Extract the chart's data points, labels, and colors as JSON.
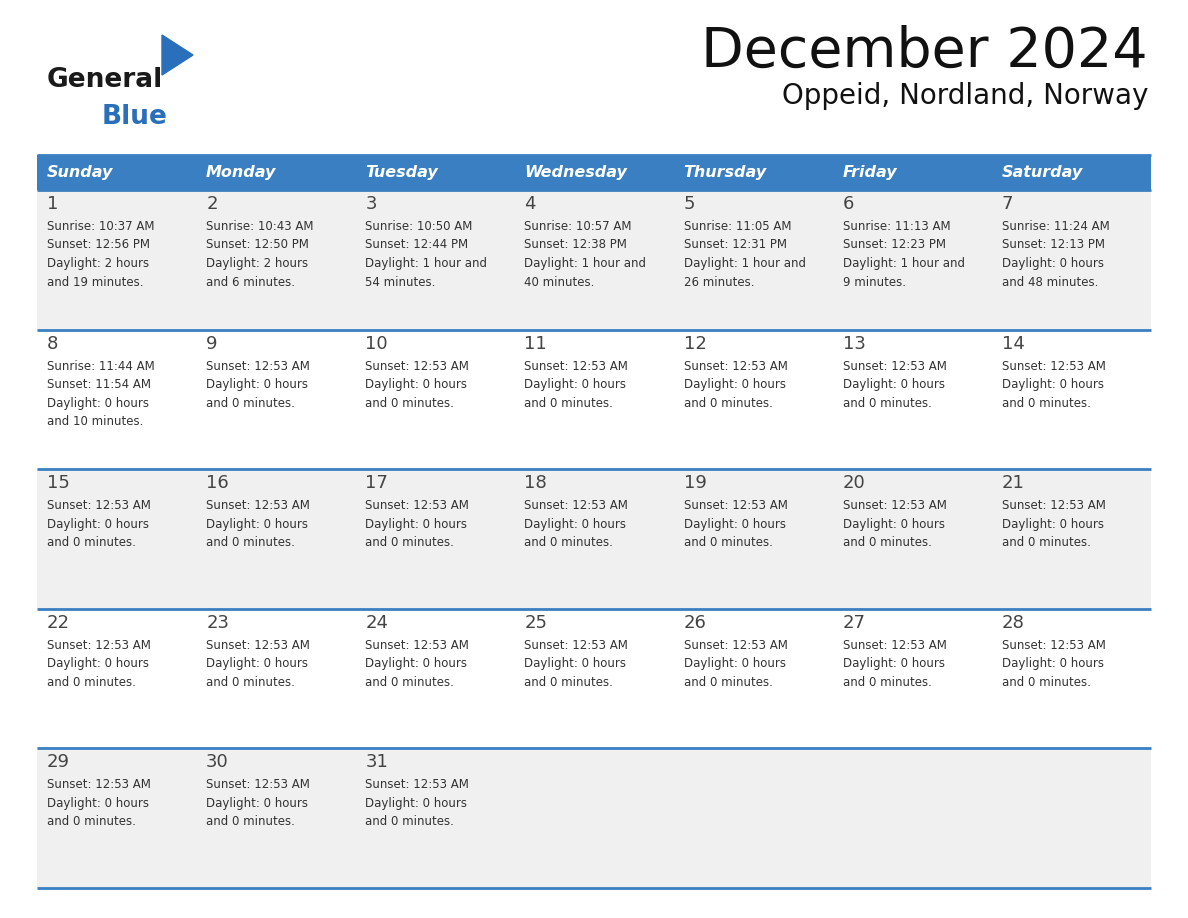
{
  "title": "December 2024",
  "subtitle": "Oppeid, Nordland, Norway",
  "header_bg_color": "#3a7fc1",
  "header_text_color": "#ffffff",
  "cell_bg_color_odd": "#f0f0f0",
  "cell_bg_color_even": "#ffffff",
  "grid_line_color": "#3a7fc1",
  "day_headers": [
    "Sunday",
    "Monday",
    "Tuesday",
    "Wednesday",
    "Thursday",
    "Friday",
    "Saturday"
  ],
  "weeks": [
    {
      "days": [
        {
          "date": "1",
          "info": "Sunrise: 10:37 AM\nSunset: 12:56 PM\nDaylight: 2 hours\nand 19 minutes."
        },
        {
          "date": "2",
          "info": "Sunrise: 10:43 AM\nSunset: 12:50 PM\nDaylight: 2 hours\nand 6 minutes."
        },
        {
          "date": "3",
          "info": "Sunrise: 10:50 AM\nSunset: 12:44 PM\nDaylight: 1 hour and\n54 minutes."
        },
        {
          "date": "4",
          "info": "Sunrise: 10:57 AM\nSunset: 12:38 PM\nDaylight: 1 hour and\n40 minutes."
        },
        {
          "date": "5",
          "info": "Sunrise: 11:05 AM\nSunset: 12:31 PM\nDaylight: 1 hour and\n26 minutes."
        },
        {
          "date": "6",
          "info": "Sunrise: 11:13 AM\nSunset: 12:23 PM\nDaylight: 1 hour and\n9 minutes."
        },
        {
          "date": "7",
          "info": "Sunrise: 11:24 AM\nSunset: 12:13 PM\nDaylight: 0 hours\nand 48 minutes."
        }
      ]
    },
    {
      "days": [
        {
          "date": "8",
          "info": "Sunrise: 11:44 AM\nSunset: 11:54 AM\nDaylight: 0 hours\nand 10 minutes."
        },
        {
          "date": "9",
          "info": "Sunset: 12:53 AM\nDaylight: 0 hours\nand 0 minutes."
        },
        {
          "date": "10",
          "info": "Sunset: 12:53 AM\nDaylight: 0 hours\nand 0 minutes."
        },
        {
          "date": "11",
          "info": "Sunset: 12:53 AM\nDaylight: 0 hours\nand 0 minutes."
        },
        {
          "date": "12",
          "info": "Sunset: 12:53 AM\nDaylight: 0 hours\nand 0 minutes."
        },
        {
          "date": "13",
          "info": "Sunset: 12:53 AM\nDaylight: 0 hours\nand 0 minutes."
        },
        {
          "date": "14",
          "info": "Sunset: 12:53 AM\nDaylight: 0 hours\nand 0 minutes."
        }
      ]
    },
    {
      "days": [
        {
          "date": "15",
          "info": "Sunset: 12:53 AM\nDaylight: 0 hours\nand 0 minutes."
        },
        {
          "date": "16",
          "info": "Sunset: 12:53 AM\nDaylight: 0 hours\nand 0 minutes."
        },
        {
          "date": "17",
          "info": "Sunset: 12:53 AM\nDaylight: 0 hours\nand 0 minutes."
        },
        {
          "date": "18",
          "info": "Sunset: 12:53 AM\nDaylight: 0 hours\nand 0 minutes."
        },
        {
          "date": "19",
          "info": "Sunset: 12:53 AM\nDaylight: 0 hours\nand 0 minutes."
        },
        {
          "date": "20",
          "info": "Sunset: 12:53 AM\nDaylight: 0 hours\nand 0 minutes."
        },
        {
          "date": "21",
          "info": "Sunset: 12:53 AM\nDaylight: 0 hours\nand 0 minutes."
        }
      ]
    },
    {
      "days": [
        {
          "date": "22",
          "info": "Sunset: 12:53 AM\nDaylight: 0 hours\nand 0 minutes."
        },
        {
          "date": "23",
          "info": "Sunset: 12:53 AM\nDaylight: 0 hours\nand 0 minutes."
        },
        {
          "date": "24",
          "info": "Sunset: 12:53 AM\nDaylight: 0 hours\nand 0 minutes."
        },
        {
          "date": "25",
          "info": "Sunset: 12:53 AM\nDaylight: 0 hours\nand 0 minutes."
        },
        {
          "date": "26",
          "info": "Sunset: 12:53 AM\nDaylight: 0 hours\nand 0 minutes."
        },
        {
          "date": "27",
          "info": "Sunset: 12:53 AM\nDaylight: 0 hours\nand 0 minutes."
        },
        {
          "date": "28",
          "info": "Sunset: 12:53 AM\nDaylight: 0 hours\nand 0 minutes."
        }
      ]
    },
    {
      "days": [
        {
          "date": "29",
          "info": "Sunset: 12:53 AM\nDaylight: 0 hours\nand 0 minutes."
        },
        {
          "date": "30",
          "info": "Sunset: 12:53 AM\nDaylight: 0 hours\nand 0 minutes."
        },
        {
          "date": "31",
          "info": "Sunset: 12:53 AM\nDaylight: 0 hours\nand 0 minutes."
        },
        {
          "date": "",
          "info": ""
        },
        {
          "date": "",
          "info": ""
        },
        {
          "date": "",
          "info": ""
        },
        {
          "date": "",
          "info": ""
        }
      ]
    }
  ],
  "logo_color_general": "#1a1a1a",
  "logo_color_blue": "#2a6fba",
  "logo_triangle_color": "#2a6fba"
}
